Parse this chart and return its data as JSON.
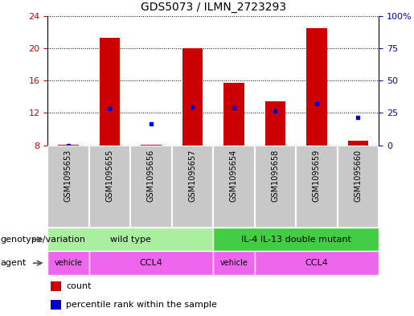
{
  "title": "GDS5073 / ILMN_2723293",
  "samples": [
    "GSM1095653",
    "GSM1095655",
    "GSM1095656",
    "GSM1095657",
    "GSM1095654",
    "GSM1095658",
    "GSM1095659",
    "GSM1095660"
  ],
  "count_values": [
    8.05,
    21.3,
    8.1,
    20.0,
    15.7,
    13.4,
    22.5,
    8.6
  ],
  "percentile_values": [
    8.0,
    12.5,
    10.7,
    12.7,
    12.6,
    12.2,
    13.1,
    11.5
  ],
  "ylim_left": [
    8,
    24
  ],
  "yticks_left": [
    8,
    12,
    16,
    20,
    24
  ],
  "ylim_right": [
    0,
    100
  ],
  "yticks_right": [
    0,
    25,
    50,
    75,
    100
  ],
  "bar_color": "#cc0000",
  "dot_color": "#0000cc",
  "bar_width": 0.5,
  "left_label_color": "#cc0000",
  "right_label_color": "#0000cc",
  "genotype_label": "genotype/variation",
  "agent_label": "agent",
  "genotype_colors": [
    "#aaeea0",
    "#44cc44"
  ],
  "agent_color": "#ee66ee",
  "sample_bg_color": "#c8c8c8",
  "title_fontsize": 10,
  "tick_fontsize": 8,
  "annotation_fontsize": 8
}
